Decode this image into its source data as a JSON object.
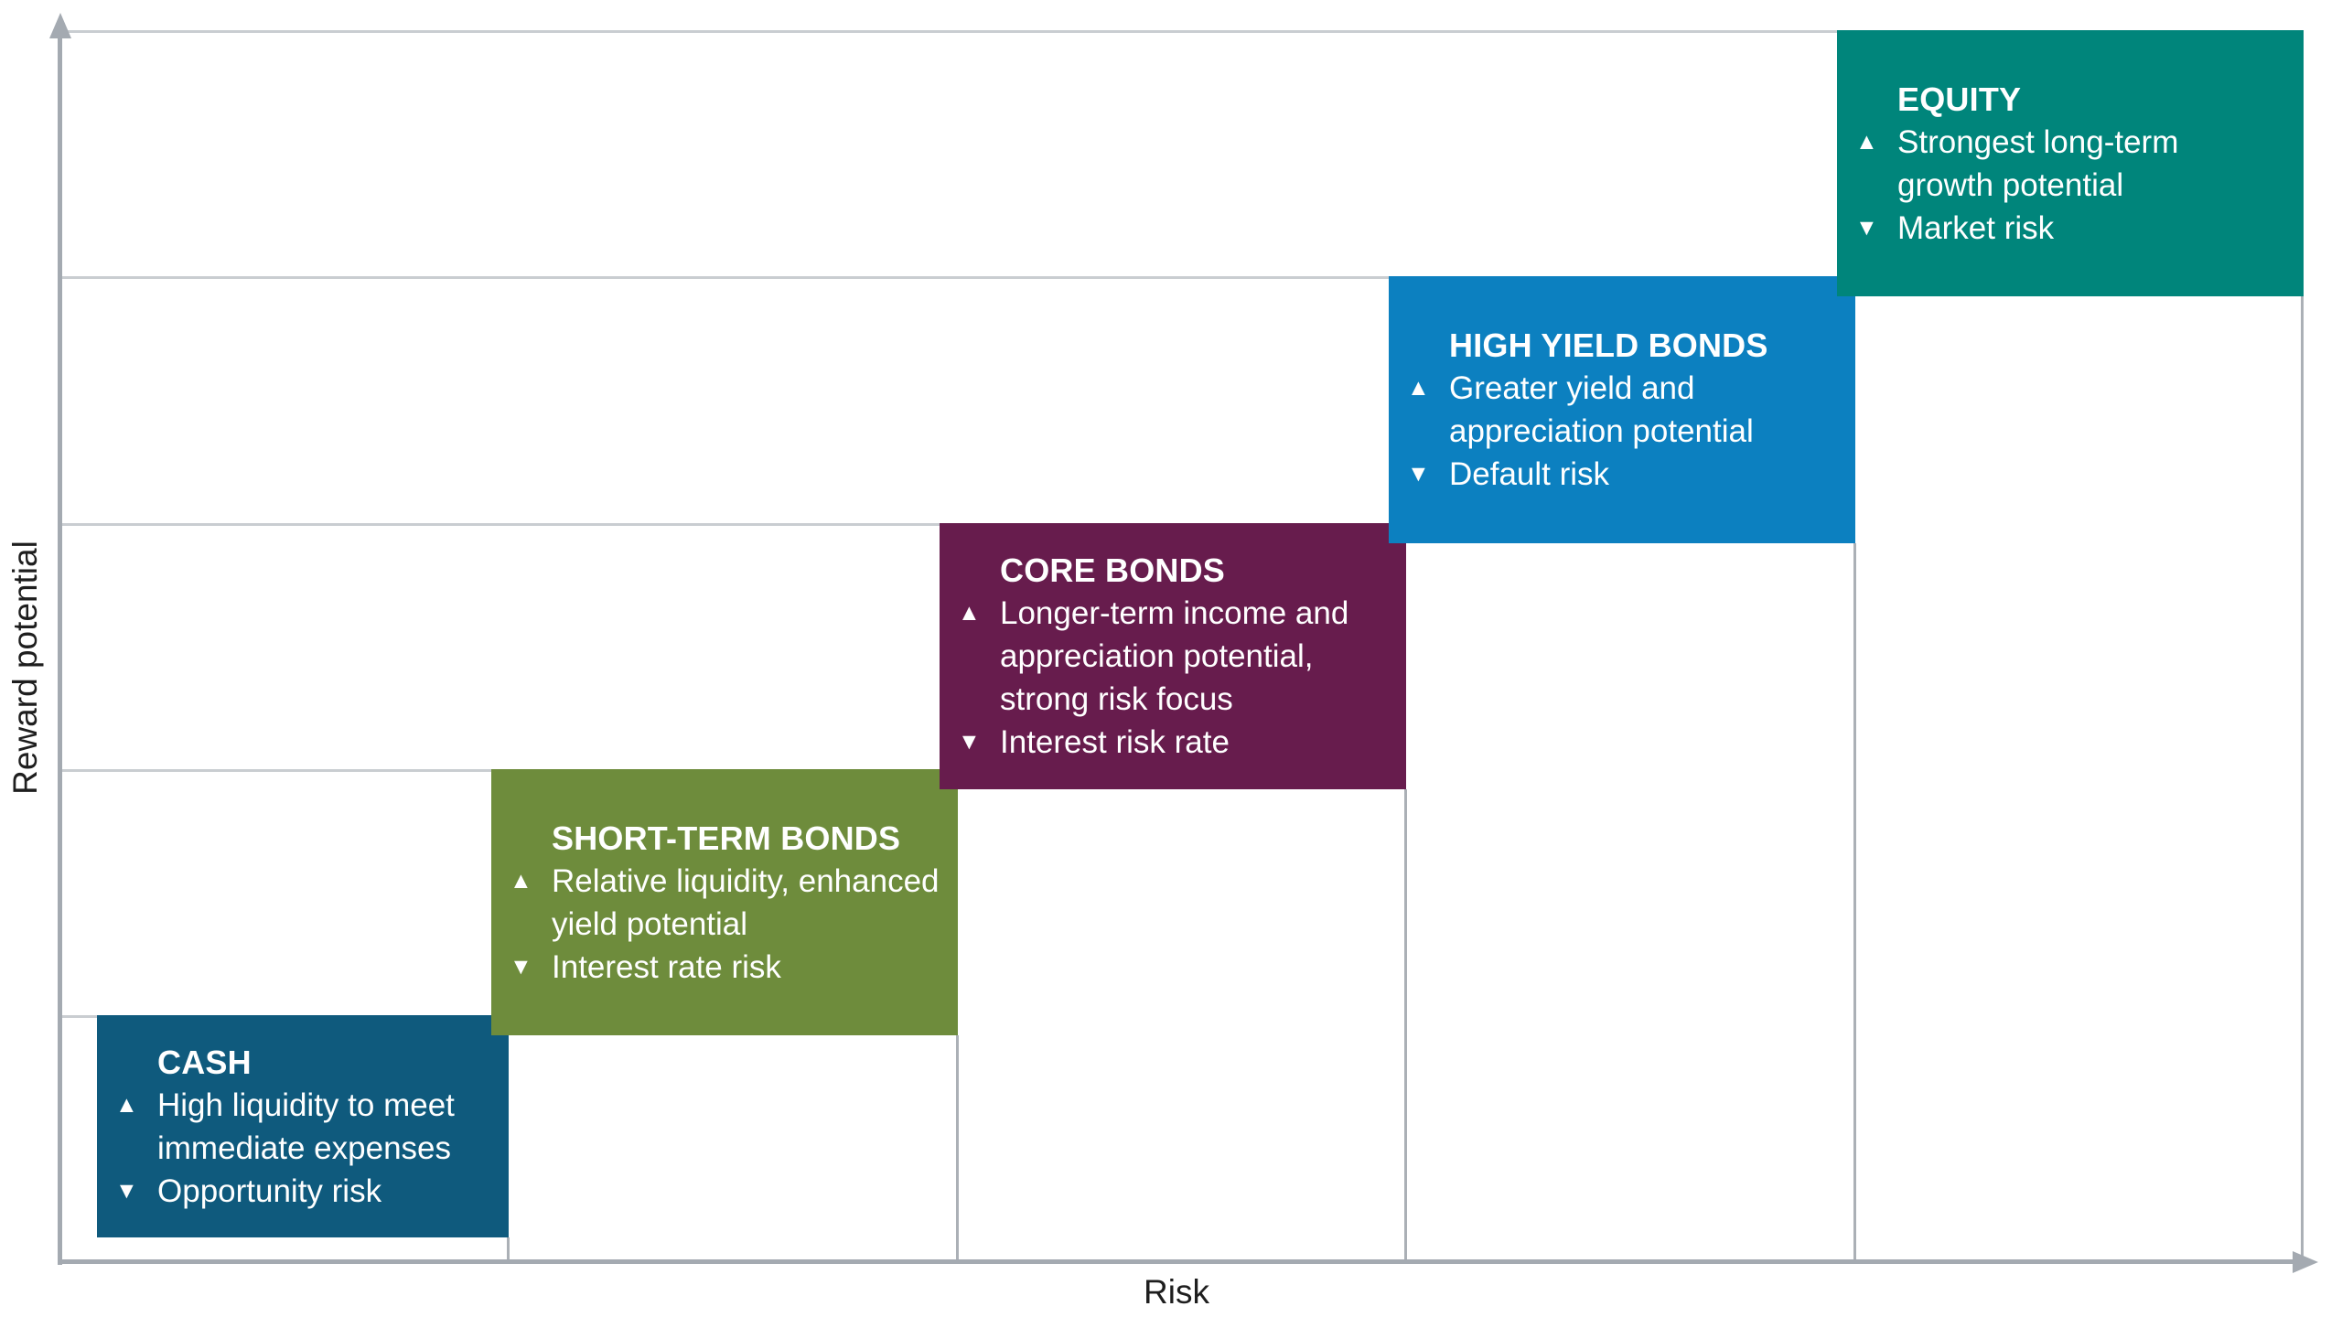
{
  "chart_data": {
    "type": "bar",
    "title": "",
    "xlabel": "Risk",
    "ylabel": "Reward potential",
    "categories": [
      "CASH",
      "SHORT-TERM BONDS",
      "CORE BONDS",
      "HIGH YIELD BONDS",
      "EQUITY"
    ],
    "series": [
      {
        "name": "risk_rank",
        "values": [
          1,
          2,
          3,
          4,
          5
        ]
      },
      {
        "name": "reward_rank",
        "values": [
          1,
          2,
          3,
          4,
          5
        ]
      }
    ],
    "annotations": [
      "CASH: ▲ High liquidity to meet immediate expenses / ▼ Opportunity risk",
      "SHORT-TERM BONDS: ▲ Relative liquidity, enhanced yield potential / ▼ Interest rate risk",
      "CORE BONDS: ▲ Longer-term income and appreciation potential, strong risk focus / ▼ Interest risk rate",
      "HIGH YIELD BONDS: ▲ Greater yield and appreciation potential / ▼ Default risk",
      "EQUITY: ▲ Strongest long-term growth potential / ▼ Market risk"
    ],
    "legend": false,
    "grid": true,
    "axis_ranges": {
      "x": "qualitative low to high",
      "y": "qualitative low to high"
    }
  },
  "axes": {
    "x_label": "Risk",
    "y_label": "Reward potential"
  },
  "markers": {
    "up": "▲",
    "down": "▼"
  },
  "colors": {
    "axis": "#a4aab1",
    "hgrid": "#c9cdd1",
    "vgrid": "#abb0b6",
    "label_text": "#1e1e1e",
    "box_text": "#ffffff"
  },
  "boxes": [
    {
      "title": "CASH",
      "benefit": "High liquidity to meet\nimmediate expenses",
      "risk": "Opportunity risk",
      "color": "#0f5a7d"
    },
    {
      "title": "SHORT-TERM BONDS",
      "benefit": "Relative liquidity, enhanced\nyield potential",
      "risk": "Interest rate risk",
      "color": "#6e8c3c"
    },
    {
      "title": "CORE BONDS",
      "benefit": "Longer-term income and\nappreciation potential,\nstrong risk focus",
      "risk": "Interest risk rate",
      "color": "#671c4d"
    },
    {
      "title": "HIGH YIELD BONDS",
      "benefit": "Greater yield and\nappreciation potential",
      "risk": "Default risk",
      "color": "#0c80c0"
    },
    {
      "title": "EQUITY",
      "benefit": "Strongest long-term\ngrowth potential",
      "risk": "Market risk",
      "color": "#00857b"
    }
  ]
}
